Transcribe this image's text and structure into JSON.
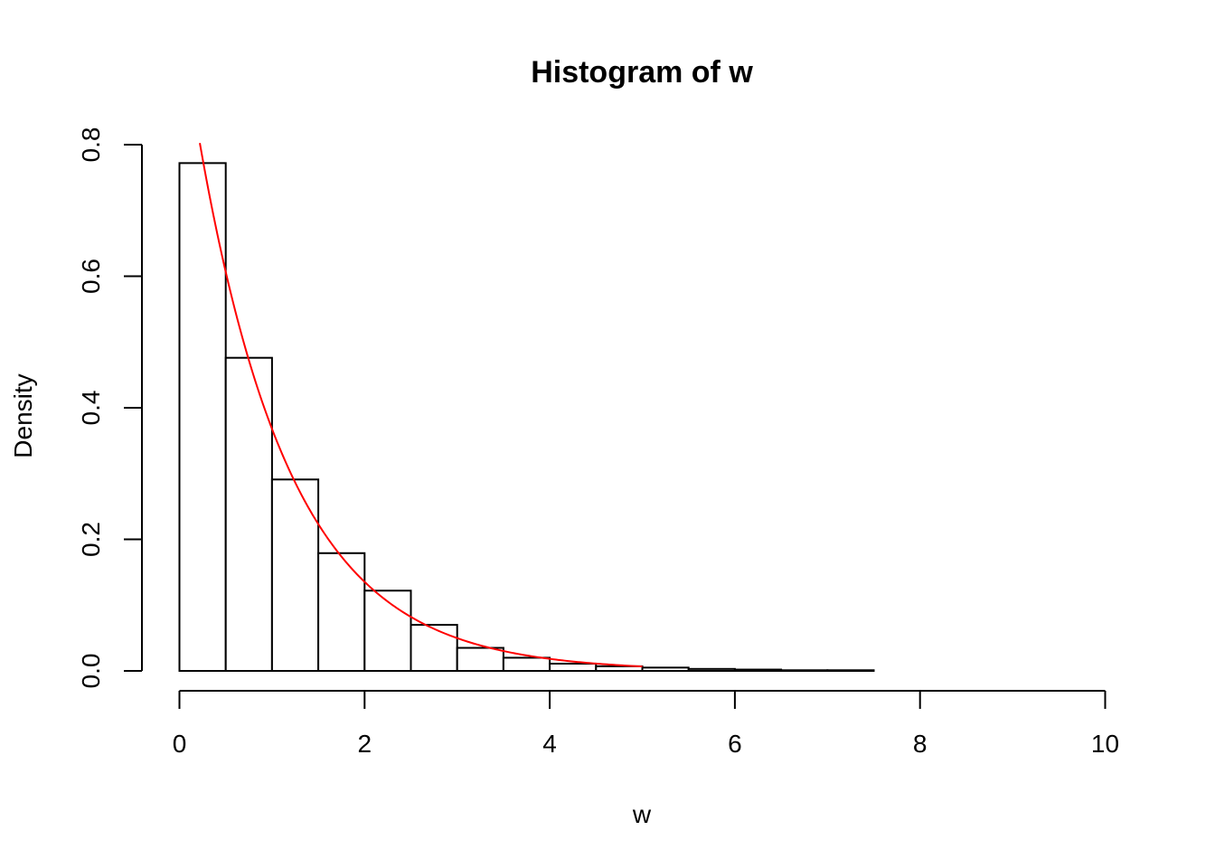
{
  "chart_data": {
    "type": "histogram",
    "title": "Histogram of w",
    "xlabel": "w",
    "ylabel": "Density",
    "xlim": [
      0,
      10
    ],
    "ylim": [
      0,
      0.8
    ],
    "x_ticks": [
      "0",
      "2",
      "4",
      "6",
      "8",
      "10"
    ],
    "y_ticks": [
      "0.0",
      "0.2",
      "0.4",
      "0.6",
      "0.8"
    ],
    "bins": [
      {
        "x0": 0.0,
        "x1": 0.5,
        "density": 0.772
      },
      {
        "x0": 0.5,
        "x1": 1.0,
        "density": 0.476
      },
      {
        "x0": 1.0,
        "x1": 1.5,
        "density": 0.291
      },
      {
        "x0": 1.5,
        "x1": 2.0,
        "density": 0.179
      },
      {
        "x0": 2.0,
        "x1": 2.5,
        "density": 0.122
      },
      {
        "x0": 2.5,
        "x1": 3.0,
        "density": 0.07
      },
      {
        "x0": 3.0,
        "x1": 3.5,
        "density": 0.035
      },
      {
        "x0": 3.5,
        "x1": 4.0,
        "density": 0.02
      },
      {
        "x0": 4.0,
        "x1": 4.5,
        "density": 0.011
      },
      {
        "x0": 4.5,
        "x1": 5.0,
        "density": 0.007
      },
      {
        "x0": 5.0,
        "x1": 5.5,
        "density": 0.005
      },
      {
        "x0": 5.5,
        "x1": 6.0,
        "density": 0.003
      },
      {
        "x0": 6.0,
        "x1": 6.5,
        "density": 0.002
      },
      {
        "x0": 6.5,
        "x1": 7.0,
        "density": 0.001
      },
      {
        "x0": 7.0,
        "x1": 7.5,
        "density": 0.001
      },
      {
        "x0": 7.5,
        "x1": 8.0,
        "density": 0.0
      },
      {
        "x0": 8.0,
        "x1": 8.5,
        "density": 0.0
      },
      {
        "x0": 8.5,
        "x1": 9.0,
        "density": 0.0
      },
      {
        "x0": 9.0,
        "x1": 9.5,
        "density": 0.0
      },
      {
        "x0": 9.5,
        "x1": 10.0,
        "density": 0.0
      }
    ],
    "density_curve": {
      "color": "#ff0000",
      "function": "exponential",
      "rate": 1,
      "x_range": [
        0.22,
        5.0
      ]
    },
    "bar_fill": "#ffffff",
    "bar_stroke": "#000000",
    "grid": false
  }
}
